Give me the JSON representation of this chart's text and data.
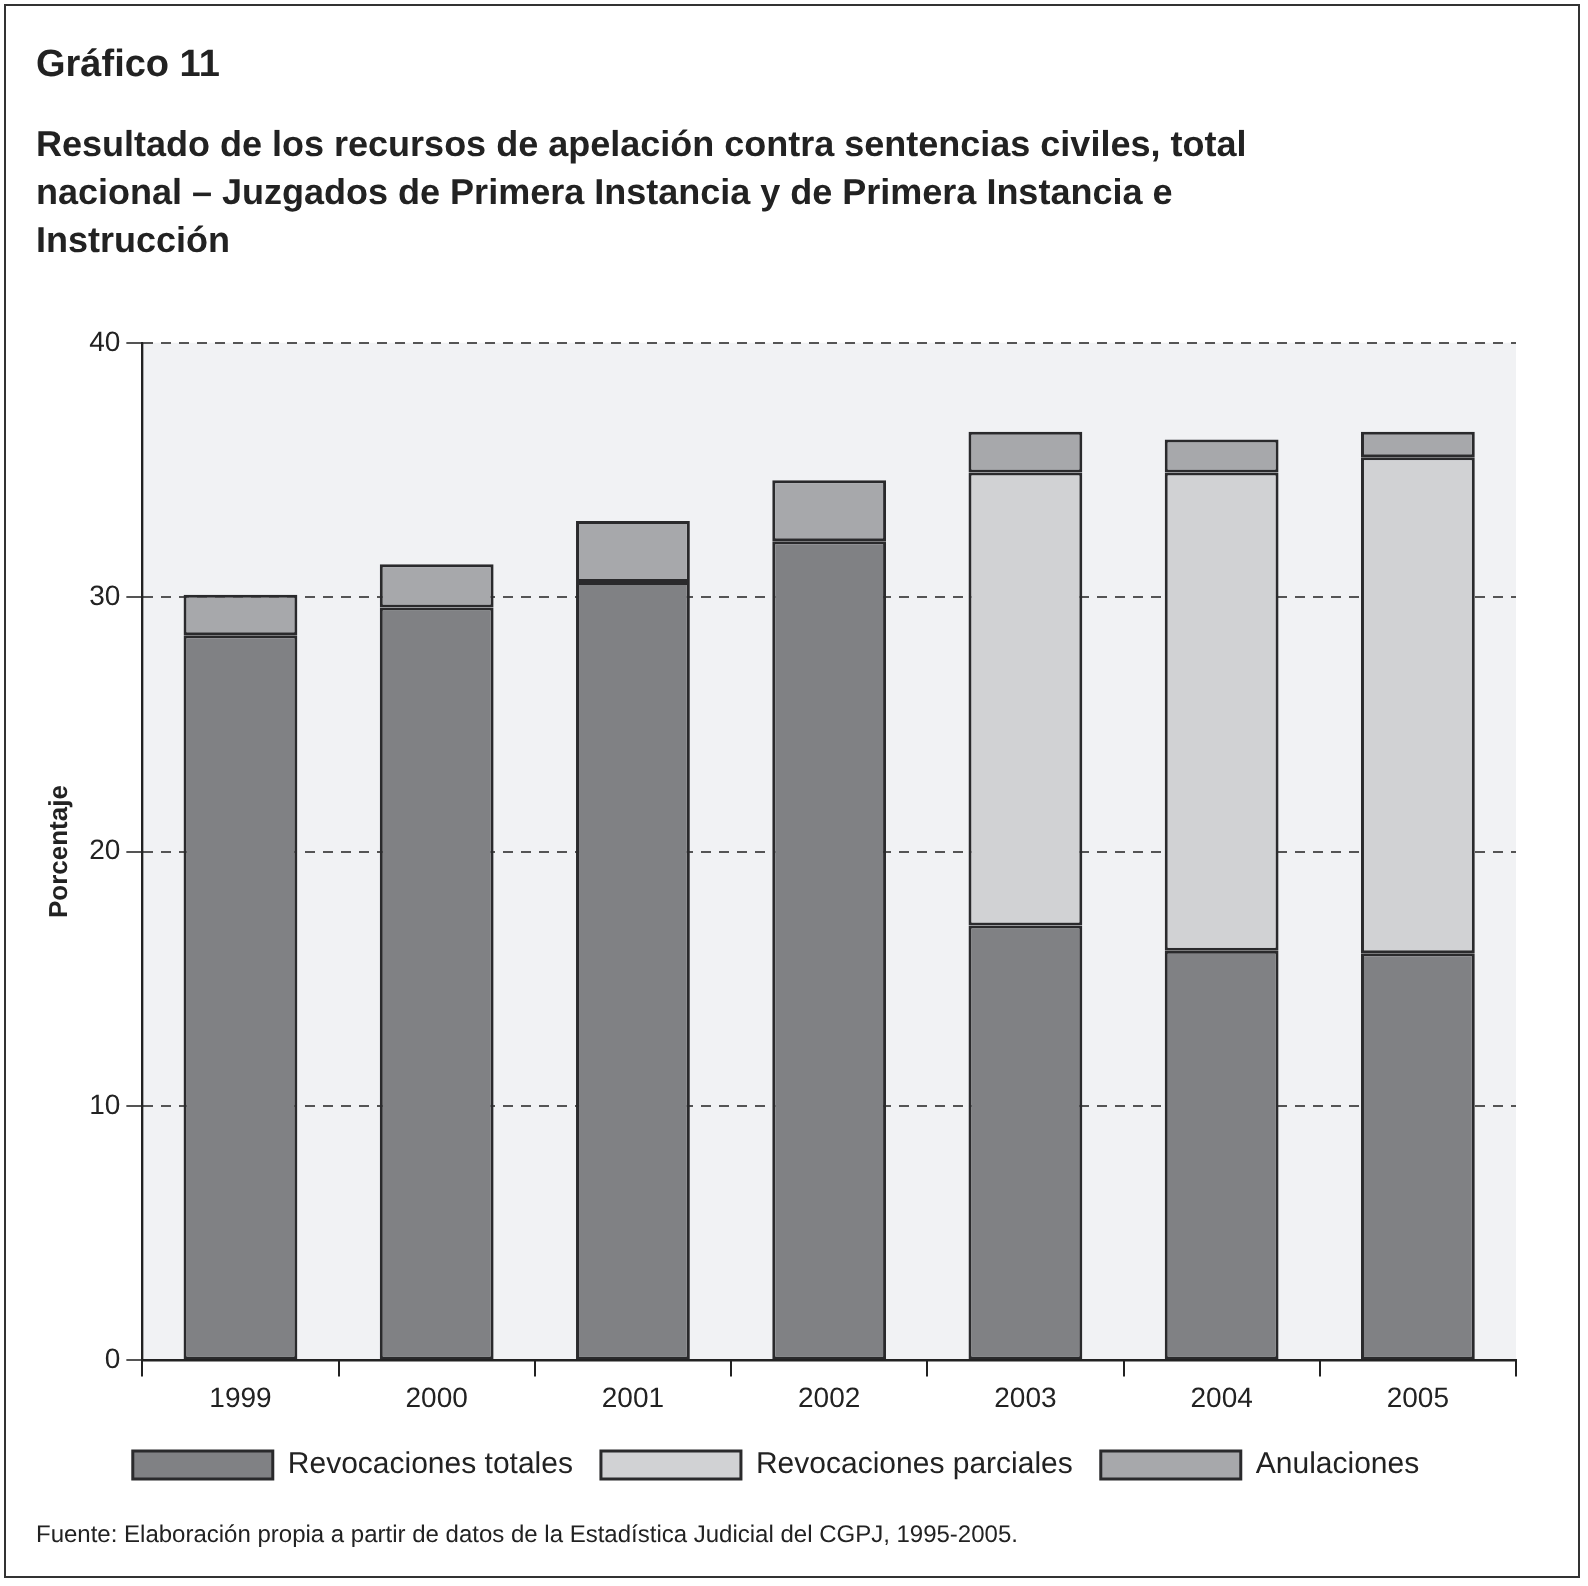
{
  "chart_data": {
    "type": "bar",
    "title": "Gráfico 11",
    "subtitle": "Resultado de los recursos de apelación contra sentencias civiles, total nacional – Juzgados de Primera Instancia y de Primera Instancia e Instrucción",
    "ylabel": "Porcentaje",
    "categories": [
      "1999",
      "2000",
      "2001",
      "2002",
      "2003",
      "2004",
      "2005"
    ],
    "stacked": true,
    "series": [
      {
        "name": "Revocaciones totales",
        "color": "#808184",
        "values": [
          28.5,
          29.6,
          30.6,
          32.2,
          17.1,
          16.1,
          16.0
        ]
      },
      {
        "name": "Revocaciones parciales",
        "color": "#d1d2d4",
        "values": [
          null,
          null,
          null,
          null,
          17.8,
          18.8,
          19.5
        ]
      },
      {
        "name": "Anulaciones",
        "color": "#a7a8ab",
        "values": [
          1.6,
          1.7,
          2.4,
          2.4,
          1.6,
          1.3,
          1.0
        ]
      }
    ],
    "ylim": [
      0,
      40
    ],
    "yticks": [
      0,
      10,
      20,
      30,
      40
    ],
    "grid": "y",
    "legend": "bottom",
    "annotations": [
      "Fuente: Elaboración propia a partir de datos de la Estadística Judicial del CGPJ, 1995-2005."
    ]
  }
}
